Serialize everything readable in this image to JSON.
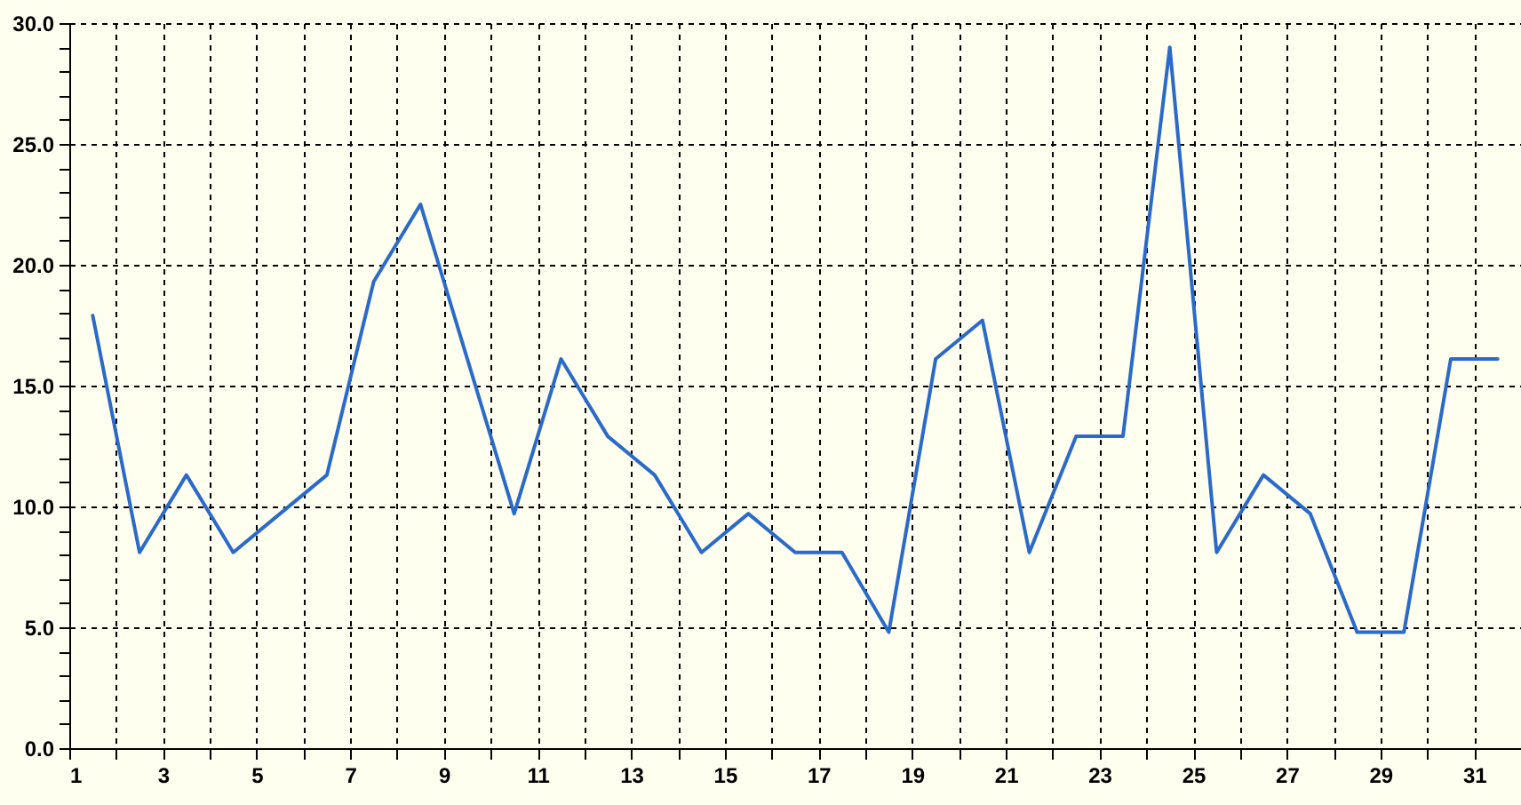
{
  "chart_data": {
    "type": "line",
    "x": [
      1.5,
      2.5,
      3.5,
      4.5,
      5.5,
      6.5,
      7.5,
      8.5,
      9.5,
      10.5,
      11.5,
      12.5,
      13.5,
      14.5,
      15.5,
      16.5,
      17.5,
      18.5,
      19.5,
      20.5,
      21.5,
      22.5,
      23.5,
      24.5,
      25.5,
      26.5,
      27.5,
      28.5,
      29.5,
      30.5,
      31.5
    ],
    "series": [
      {
        "color": "#2b6ac9",
        "values": [
          17.9,
          8.1,
          11.3,
          8.1,
          9.7,
          11.3,
          19.3,
          22.5,
          16.1,
          9.7,
          16.1,
          12.9,
          11.3,
          8.1,
          9.7,
          8.1,
          8.1,
          4.8,
          16.1,
          17.7,
          8.1,
          12.9,
          12.9,
          29.0,
          8.1,
          11.3,
          9.7,
          4.8,
          4.8,
          16.1,
          16.1
        ]
      }
    ],
    "xlim": [
      1,
      32
    ],
    "xticks": [
      1,
      {
        "value": 2,
        "label": null
      },
      3,
      {
        "value": 4,
        "label": null
      },
      5,
      {
        "value": 6,
        "label": null
      },
      7,
      {
        "value": 8,
        "label": null
      },
      9,
      {
        "value": 10,
        "label": null
      },
      11,
      {
        "value": 12,
        "label": null
      },
      13,
      {
        "value": 14,
        "label": null
      },
      15,
      {
        "value": 16,
        "label": null
      },
      17,
      {
        "value": 18,
        "label": null
      },
      19,
      {
        "value": 20,
        "label": null
      },
      21,
      {
        "value": 22,
        "label": null
      },
      23,
      {
        "value": 24,
        "label": null
      },
      25,
      {
        "value": 26,
        "label": null
      },
      27,
      {
        "value": 28,
        "label": null
      },
      29,
      {
        "value": 30,
        "label": null
      },
      31,
      {
        "value": 32,
        "label": null
      }
    ],
    "ylim": [
      0,
      30
    ],
    "yticks": [
      {
        "value": 0,
        "label": "0.0"
      },
      {
        "value": 1,
        "label": null
      },
      {
        "value": 2,
        "label": null
      },
      {
        "value": 3,
        "label": null
      },
      {
        "value": 4,
        "label": null
      },
      {
        "value": 5,
        "label": "5.0"
      },
      {
        "value": 6,
        "label": null
      },
      {
        "value": 7,
        "label": null
      },
      {
        "value": 8,
        "label": null
      },
      {
        "value": 9,
        "label": null
      },
      {
        "value": 10,
        "label": "10.0"
      },
      {
        "value": 11,
        "label": null
      },
      {
        "value": 12,
        "label": null
      },
      {
        "value": 13,
        "label": null
      },
      {
        "value": 14,
        "label": null
      },
      {
        "value": 15,
        "label": "15.0"
      },
      {
        "value": 16,
        "label": null
      },
      {
        "value": 17,
        "label": null
      },
      {
        "value": 18,
        "label": null
      },
      {
        "value": 19,
        "label": null
      },
      {
        "value": 20,
        "label": "20.0"
      },
      {
        "value": 21,
        "label": null
      },
      {
        "value": 22,
        "label": null
      },
      {
        "value": 23,
        "label": null
      },
      {
        "value": 24,
        "label": null
      },
      {
        "value": 25,
        "label": "25.0"
      },
      {
        "value": 26,
        "label": null
      },
      {
        "value": 27,
        "label": null
      },
      {
        "value": 28,
        "label": null
      },
      {
        "value": 29,
        "label": null
      },
      {
        "value": 30,
        "label": "30.0"
      }
    ],
    "grid": true,
    "line_style": "solid"
  }
}
